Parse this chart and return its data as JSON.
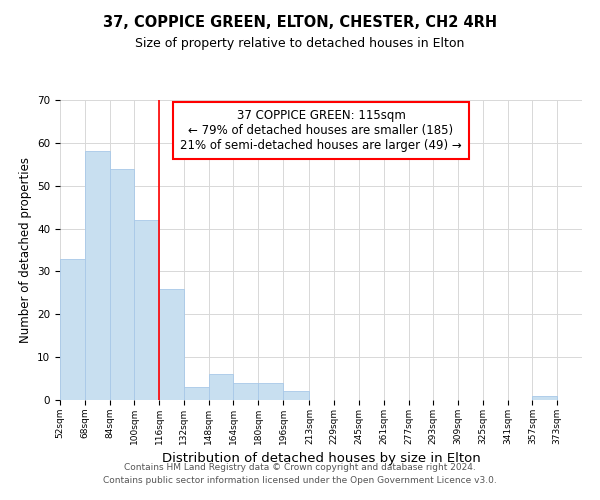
{
  "title": "37, COPPICE GREEN, ELTON, CHESTER, CH2 4RH",
  "subtitle": "Size of property relative to detached houses in Elton",
  "xlabel": "Distribution of detached houses by size in Elton",
  "ylabel": "Number of detached properties",
  "bar_edges": [
    52,
    68,
    84,
    100,
    116,
    132,
    148,
    164,
    180,
    196,
    213,
    229,
    245,
    261,
    277,
    293,
    309,
    325,
    341,
    357,
    373,
    389
  ],
  "bar_heights": [
    33,
    58,
    54,
    42,
    26,
    3,
    6,
    4,
    4,
    2,
    0,
    0,
    0,
    0,
    0,
    0,
    0,
    0,
    0,
    1,
    0
  ],
  "bar_color": "#c8dff0",
  "bar_edgecolor": "#a8c8e8",
  "vline_x": 116,
  "vline_color": "red",
  "vline_linewidth": 1.2,
  "annotation_text": "37 COPPICE GREEN: 115sqm\n← 79% of detached houses are smaller (185)\n21% of semi-detached houses are larger (49) →",
  "annotation_fontsize": 8.5,
  "annotation_box_color": "white",
  "annotation_box_edgecolor": "red",
  "ylim": [
    0,
    70
  ],
  "yticks": [
    0,
    10,
    20,
    30,
    40,
    50,
    60,
    70
  ],
  "xtick_labels": [
    "52sqm",
    "68sqm",
    "84sqm",
    "100sqm",
    "116sqm",
    "132sqm",
    "148sqm",
    "164sqm",
    "180sqm",
    "196sqm",
    "213sqm",
    "229sqm",
    "245sqm",
    "261sqm",
    "277sqm",
    "293sqm",
    "309sqm",
    "325sqm",
    "341sqm",
    "357sqm",
    "373sqm"
  ],
  "footer_line1": "Contains HM Land Registry data © Crown copyright and database right 2024.",
  "footer_line2": "Contains public sector information licensed under the Open Government Licence v3.0.",
  "title_fontsize": 10.5,
  "subtitle_fontsize": 9,
  "xlabel_fontsize": 9.5,
  "ylabel_fontsize": 8.5,
  "footer_fontsize": 6.5,
  "bg_color": "#ffffff",
  "grid_color": "#d8d8d8"
}
